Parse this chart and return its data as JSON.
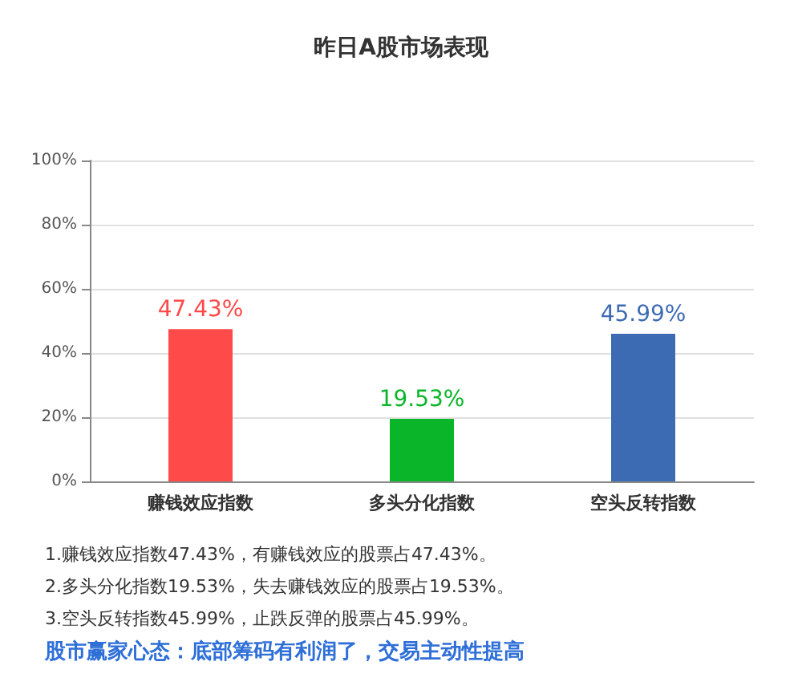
{
  "chart_data": {
    "type": "bar",
    "title": "昨日A股市场表现",
    "categories": [
      "赚钱效应指数",
      "多头分化指数",
      "空头反转指数"
    ],
    "values": [
      47.43,
      19.53,
      45.99
    ],
    "colors": [
      "#ff4a4a",
      "#0ab52a",
      "#3d6bb3"
    ],
    "value_labels": [
      "47.43%",
      "19.53%",
      "45.99%"
    ],
    "ylim": [
      0,
      100
    ],
    "yticks": [
      {
        "value": 0,
        "label": "0%"
      },
      {
        "value": 20,
        "label": "20%"
      },
      {
        "value": 40,
        "label": "40%"
      },
      {
        "value": 60,
        "label": "60%"
      },
      {
        "value": 80,
        "label": "80%"
      },
      {
        "value": 100,
        "label": "100%"
      }
    ],
    "grid": "y",
    "annotations": [
      "1.赚钱效应指数47.43%，有赚钱效应的股票占47.43%。",
      "2.多头分化指数19.53%，失去赚钱效应的股票占19.53%。",
      "3.空头反转指数45.99%，止跌反弹的股票占45.99%。",
      "股市赢家心态：底部筹码有利润了，交易主动性提高"
    ]
  }
}
